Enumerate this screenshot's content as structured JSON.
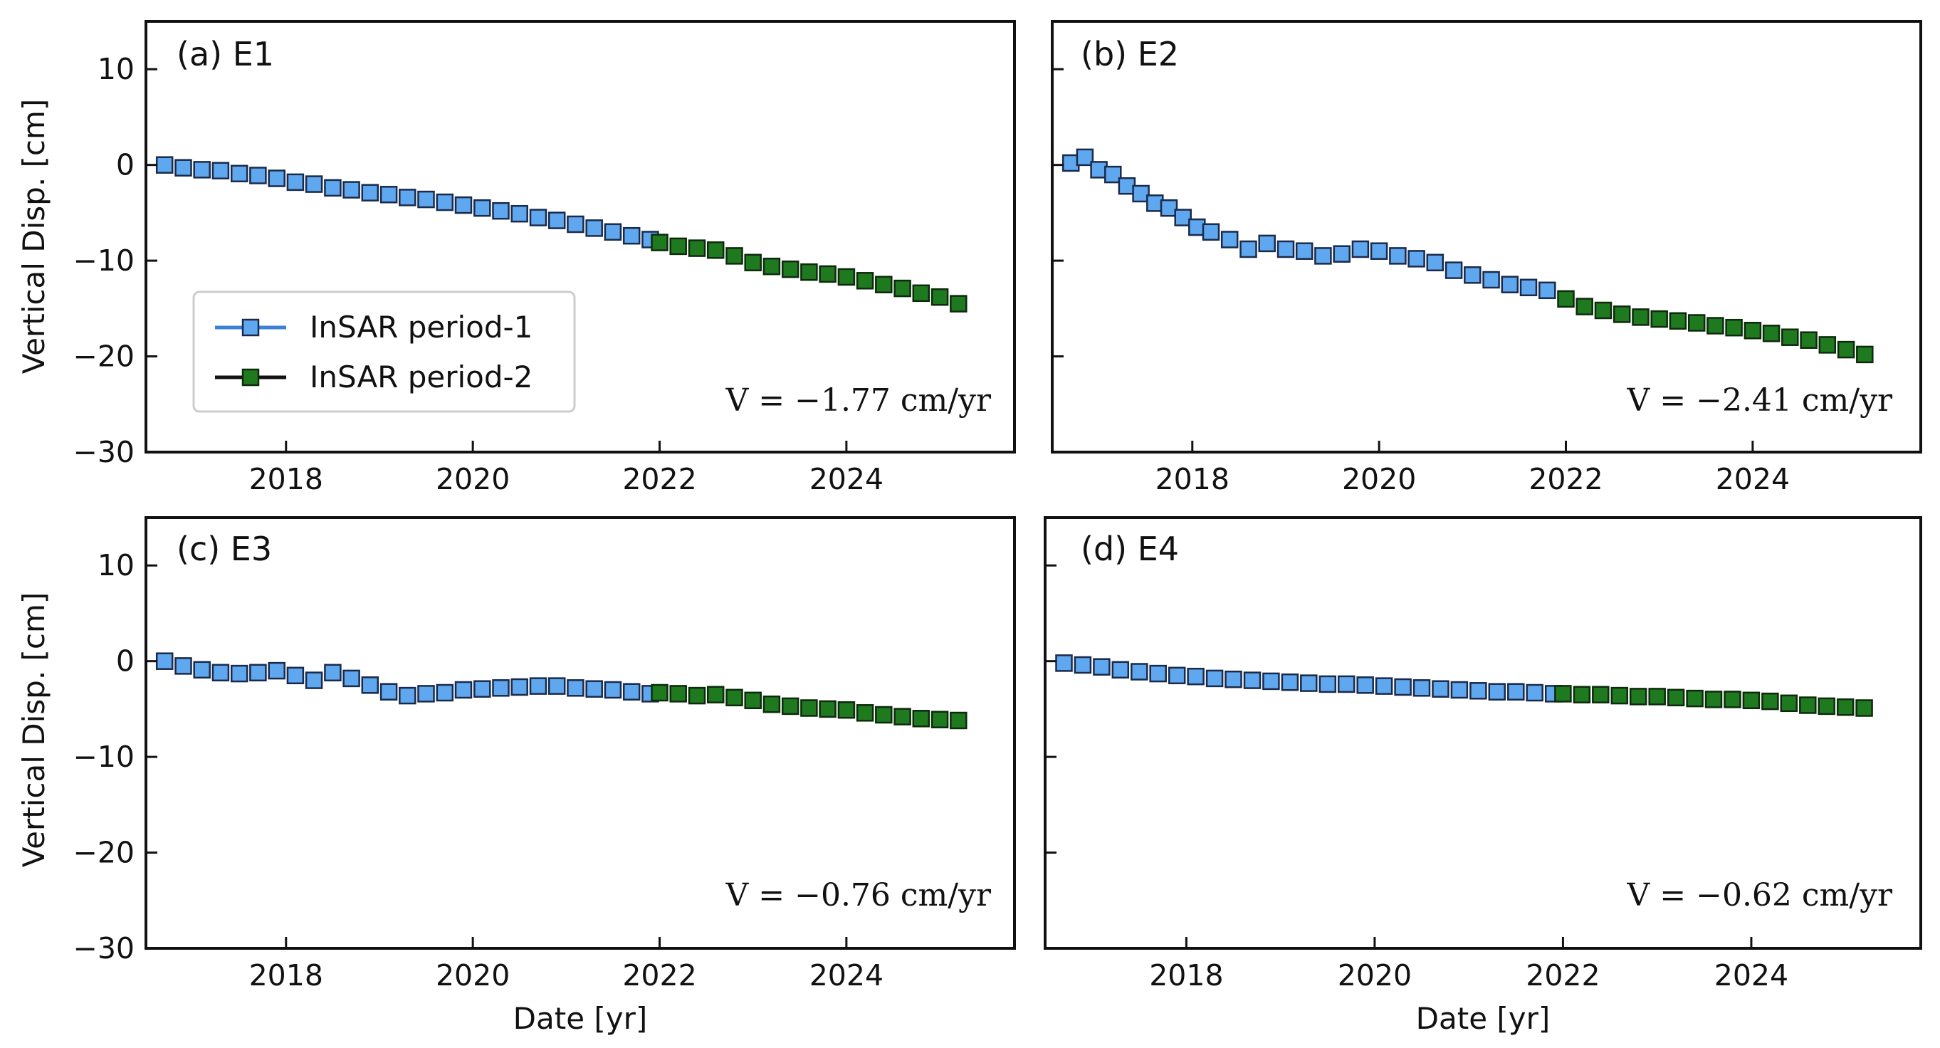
{
  "chart_data": [
    {
      "type": "scatter",
      "panel": "(a) E1",
      "velocity_label": "V = −1.77 cm/yr",
      "xlabel": "",
      "ylabel": "Vertical Disp. [cm]",
      "xlim": [
        2016.5,
        2025.8
      ],
      "ylim": [
        -30,
        15
      ],
      "xticks": [
        2018,
        2020,
        2022,
        2024
      ],
      "xtick_labels": [
        "2018",
        "2020",
        "2022",
        "2024"
      ],
      "yticks": [
        10,
        0,
        -10,
        -20,
        -30
      ],
      "ytick_labels": [
        "10",
        "0",
        "−10",
        "−20",
        "−30"
      ],
      "legend": {
        "loc": "lower-left",
        "entries": [
          "InSAR period-1",
          "InSAR period-2"
        ]
      },
      "series": [
        {
          "name": "InSAR period-1",
          "color": "#5fa8ef",
          "x": [
            2016.7,
            2016.9,
            2017.1,
            2017.3,
            2017.5,
            2017.7,
            2017.9,
            2018.1,
            2018.3,
            2018.5,
            2018.7,
            2018.9,
            2019.1,
            2019.3,
            2019.5,
            2019.7,
            2019.9,
            2020.1,
            2020.3,
            2020.5,
            2020.7,
            2020.9,
            2021.1,
            2021.3,
            2021.5,
            2021.7,
            2021.9
          ],
          "y": [
            0.0,
            -0.3,
            -0.5,
            -0.6,
            -0.9,
            -1.1,
            -1.4,
            -1.8,
            -2.0,
            -2.4,
            -2.6,
            -2.9,
            -3.1,
            -3.4,
            -3.6,
            -3.9,
            -4.2,
            -4.5,
            -4.8,
            -5.1,
            -5.5,
            -5.8,
            -6.2,
            -6.6,
            -7.0,
            -7.4,
            -7.8
          ]
        },
        {
          "name": "InSAR period-2",
          "color": "#1f7a1f",
          "x": [
            2022.0,
            2022.2,
            2022.4,
            2022.6,
            2022.8,
            2023.0,
            2023.2,
            2023.4,
            2023.6,
            2023.8,
            2024.0,
            2024.2,
            2024.4,
            2024.6,
            2024.8,
            2025.0,
            2025.2
          ],
          "y": [
            -8.1,
            -8.5,
            -8.7,
            -8.9,
            -9.5,
            -10.2,
            -10.6,
            -10.9,
            -11.2,
            -11.4,
            -11.7,
            -12.1,
            -12.5,
            -12.9,
            -13.4,
            -13.8,
            -14.5
          ]
        }
      ]
    },
    {
      "type": "scatter",
      "panel": "(b) E2",
      "velocity_label": "V = −2.41 cm/yr",
      "xlabel": "",
      "ylabel": "",
      "xlim": [
        2016.5,
        2025.8
      ],
      "ylim": [
        -30,
        15
      ],
      "xticks": [
        2018,
        2020,
        2022,
        2024
      ],
      "xtick_labels": [
        "2018",
        "2020",
        "2022",
        "2024"
      ],
      "yticks": [
        10,
        0,
        -10,
        -20,
        -30
      ],
      "ytick_labels": [],
      "series": [
        {
          "name": "InSAR period-1",
          "color": "#5fa8ef",
          "x": [
            2016.7,
            2016.85,
            2017.0,
            2017.15,
            2017.3,
            2017.45,
            2017.6,
            2017.75,
            2017.9,
            2018.05,
            2018.2,
            2018.4,
            2018.6,
            2018.8,
            2019.0,
            2019.2,
            2019.4,
            2019.6,
            2019.8,
            2020.0,
            2020.2,
            2020.4,
            2020.6,
            2020.8,
            2021.0,
            2021.2,
            2021.4,
            2021.6,
            2021.8
          ],
          "y": [
            0.2,
            0.8,
            -0.5,
            -1.0,
            -2.2,
            -3.0,
            -4.0,
            -4.5,
            -5.5,
            -6.5,
            -7.0,
            -7.8,
            -8.8,
            -8.2,
            -8.8,
            -9.0,
            -9.5,
            -9.3,
            -8.8,
            -9.0,
            -9.5,
            -9.8,
            -10.2,
            -11.0,
            -11.5,
            -12.0,
            -12.5,
            -12.8,
            -13.1
          ]
        },
        {
          "name": "InSAR period-2",
          "color": "#1f7a1f",
          "x": [
            2022.0,
            2022.2,
            2022.4,
            2022.6,
            2022.8,
            2023.0,
            2023.2,
            2023.4,
            2023.6,
            2023.8,
            2024.0,
            2024.2,
            2024.4,
            2024.6,
            2024.8,
            2025.0,
            2025.2
          ],
          "y": [
            -14.0,
            -14.8,
            -15.2,
            -15.6,
            -15.9,
            -16.1,
            -16.3,
            -16.5,
            -16.8,
            -17.0,
            -17.3,
            -17.6,
            -18.0,
            -18.3,
            -18.8,
            -19.3,
            -19.8
          ]
        }
      ]
    },
    {
      "type": "scatter",
      "panel": "(c) E3",
      "velocity_label": "V = −0.76 cm/yr",
      "xlabel": "Date [yr]",
      "ylabel": "Vertical Disp. [cm]",
      "xlim": [
        2016.5,
        2025.8
      ],
      "ylim": [
        -30,
        15
      ],
      "xticks": [
        2018,
        2020,
        2022,
        2024
      ],
      "xtick_labels": [
        "2018",
        "2020",
        "2022",
        "2024"
      ],
      "yticks": [
        10,
        0,
        -10,
        -20,
        -30
      ],
      "ytick_labels": [
        "10",
        "0",
        "−10",
        "−20",
        "−30"
      ],
      "series": [
        {
          "name": "InSAR period-1",
          "color": "#5fa8ef",
          "x": [
            2016.7,
            2016.9,
            2017.1,
            2017.3,
            2017.5,
            2017.7,
            2017.9,
            2018.1,
            2018.3,
            2018.5,
            2018.7,
            2018.9,
            2019.1,
            2019.3,
            2019.5,
            2019.7,
            2019.9,
            2020.1,
            2020.3,
            2020.5,
            2020.7,
            2020.9,
            2021.1,
            2021.3,
            2021.5,
            2021.7,
            2021.9
          ],
          "y": [
            0.0,
            -0.5,
            -0.9,
            -1.2,
            -1.3,
            -1.2,
            -1.0,
            -1.5,
            -2.0,
            -1.2,
            -1.8,
            -2.5,
            -3.2,
            -3.6,
            -3.4,
            -3.3,
            -3.0,
            -2.9,
            -2.8,
            -2.7,
            -2.6,
            -2.6,
            -2.8,
            -2.9,
            -3.0,
            -3.2,
            -3.4
          ]
        },
        {
          "name": "InSAR period-2",
          "color": "#1f7a1f",
          "x": [
            2022.0,
            2022.2,
            2022.4,
            2022.6,
            2022.8,
            2023.0,
            2023.2,
            2023.4,
            2023.6,
            2023.8,
            2024.0,
            2024.2,
            2024.4,
            2024.6,
            2024.8,
            2025.0,
            2025.2
          ],
          "y": [
            -3.3,
            -3.4,
            -3.6,
            -3.5,
            -3.8,
            -4.1,
            -4.5,
            -4.7,
            -4.9,
            -5.0,
            -5.1,
            -5.4,
            -5.6,
            -5.8,
            -6.0,
            -6.1,
            -6.2
          ]
        }
      ]
    },
    {
      "type": "scatter",
      "panel": "(d) E4",
      "velocity_label": "V = −0.62 cm/yr",
      "xlabel": "Date [yr]",
      "ylabel": "",
      "xlim": [
        2016.5,
        2025.8
      ],
      "ylim": [
        -30,
        15
      ],
      "xticks": [
        2018,
        2020,
        2022,
        2024
      ],
      "xtick_labels": [
        "2018",
        "2020",
        "2022",
        "2024"
      ],
      "yticks": [
        10,
        0,
        -10,
        -20,
        -30
      ],
      "ytick_labels": [],
      "series": [
        {
          "name": "InSAR period-1",
          "color": "#5fa8ef",
          "x": [
            2016.7,
            2016.9,
            2017.1,
            2017.3,
            2017.5,
            2017.7,
            2017.9,
            2018.1,
            2018.3,
            2018.5,
            2018.7,
            2018.9,
            2019.1,
            2019.3,
            2019.5,
            2019.7,
            2019.9,
            2020.1,
            2020.3,
            2020.5,
            2020.7,
            2020.9,
            2021.1,
            2021.3,
            2021.5,
            2021.7,
            2021.9
          ],
          "y": [
            -0.2,
            -0.4,
            -0.6,
            -0.9,
            -1.1,
            -1.3,
            -1.5,
            -1.6,
            -1.8,
            -1.9,
            -2.0,
            -2.1,
            -2.2,
            -2.3,
            -2.4,
            -2.4,
            -2.5,
            -2.6,
            -2.7,
            -2.8,
            -2.9,
            -3.0,
            -3.1,
            -3.2,
            -3.2,
            -3.3,
            -3.4
          ]
        },
        {
          "name": "InSAR period-2",
          "color": "#1f7a1f",
          "x": [
            2022.0,
            2022.2,
            2022.4,
            2022.6,
            2022.8,
            2023.0,
            2023.2,
            2023.4,
            2023.6,
            2023.8,
            2024.0,
            2024.2,
            2024.4,
            2024.6,
            2024.8,
            2025.0,
            2025.2
          ],
          "y": [
            -3.4,
            -3.5,
            -3.5,
            -3.6,
            -3.7,
            -3.7,
            -3.8,
            -3.9,
            -4.0,
            -4.0,
            -4.1,
            -4.2,
            -4.4,
            -4.6,
            -4.7,
            -4.8,
            -4.9
          ]
        }
      ]
    }
  ]
}
